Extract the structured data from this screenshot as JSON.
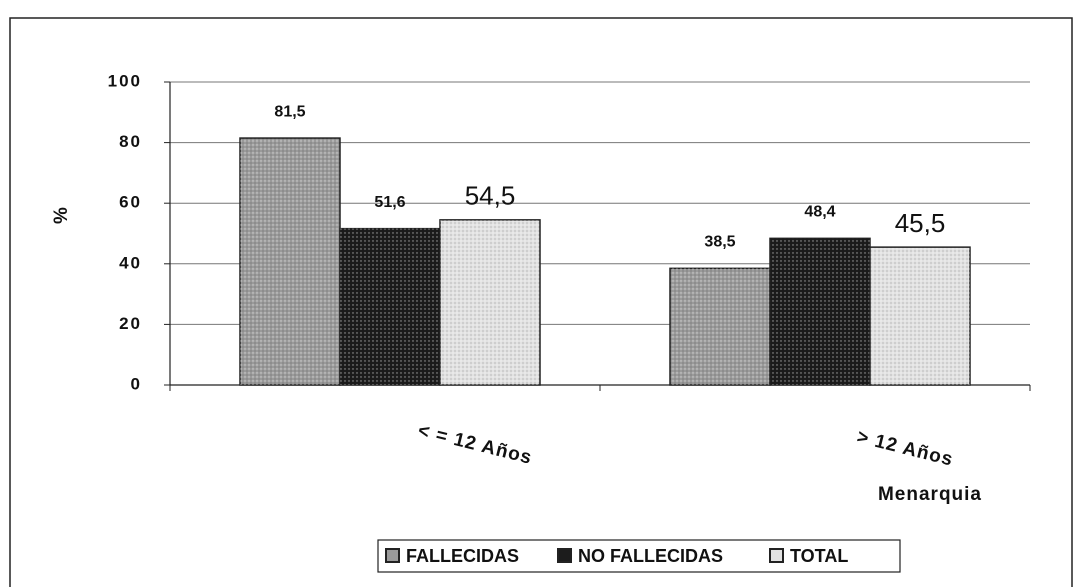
{
  "chart_data": {
    "type": "bar",
    "categories": [
      "< = 12 Años",
      "> 12 Años"
    ],
    "series": [
      {
        "name": "FALLECIDAS",
        "color": "#9a9a9a",
        "values": [
          81.5,
          38.5
        ],
        "value_labels": [
          "81,5",
          "38,5"
        ]
      },
      {
        "name": "NO FALLECIDAS",
        "color": "#1c1c1c",
        "values": [
          51.6,
          48.4
        ],
        "value_labels": [
          "51,6",
          "48,4"
        ]
      },
      {
        "name": "TOTAL",
        "color": "#e2e2e2",
        "values": [
          54.5,
          45.5
        ],
        "value_labels": [
          "54,5",
          "45,5"
        ]
      }
    ],
    "y_label": "%",
    "x_label": "Menarquia",
    "ylim": [
      0,
      100
    ],
    "yticks": [
      0,
      20,
      40,
      60,
      80,
      100
    ],
    "grid": true,
    "legend": "bottom"
  }
}
